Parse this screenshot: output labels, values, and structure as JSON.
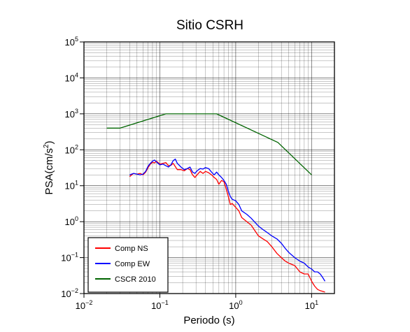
{
  "chart_data": {
    "type": "line",
    "title": "Sitio CSRH",
    "xlabel": "Periodo (s)",
    "ylabel_base": "PSA(cm/s",
    "ylabel_sup": "2",
    "ylabel_end": ")",
    "xscale": "log",
    "yscale": "log",
    "xlim": [
      0.01,
      20
    ],
    "ylim": [
      0.01,
      100000
    ],
    "grid": true,
    "legend_position": "bottom-left",
    "x_ticks": [
      {
        "value": 0.01,
        "base": "10",
        "exp": "−2"
      },
      {
        "value": 0.1,
        "base": "10",
        "exp": "−1"
      },
      {
        "value": 1,
        "base": "10",
        "exp": "0"
      },
      {
        "value": 10,
        "base": "10",
        "exp": "1"
      }
    ],
    "y_ticks": [
      {
        "value": 0.01,
        "base": "10",
        "exp": "−2"
      },
      {
        "value": 0.1,
        "base": "10",
        "exp": "−1"
      },
      {
        "value": 1,
        "base": "10",
        "exp": "0"
      },
      {
        "value": 10,
        "base": "10",
        "exp": "1"
      },
      {
        "value": 100,
        "base": "10",
        "exp": "2"
      },
      {
        "value": 1000,
        "base": "10",
        "exp": "3"
      },
      {
        "value": 10000,
        "base": "10",
        "exp": "4"
      },
      {
        "value": 100000,
        "base": "10",
        "exp": "5"
      }
    ],
    "series": [
      {
        "name": "Comp NS",
        "color": "#ff0000",
        "points": [
          [
            0.04,
            18
          ],
          [
            0.045,
            22
          ],
          [
            0.05,
            21
          ],
          [
            0.055,
            22
          ],
          [
            0.06,
            20
          ],
          [
            0.065,
            24
          ],
          [
            0.07,
            32
          ],
          [
            0.075,
            40
          ],
          [
            0.08,
            45
          ],
          [
            0.085,
            43
          ],
          [
            0.09,
            48
          ],
          [
            0.095,
            44
          ],
          [
            0.1,
            40
          ],
          [
            0.11,
            42
          ],
          [
            0.12,
            44
          ],
          [
            0.13,
            36
          ],
          [
            0.14,
            37
          ],
          [
            0.15,
            42
          ],
          [
            0.16,
            34
          ],
          [
            0.17,
            28
          ],
          [
            0.19,
            28
          ],
          [
            0.21,
            26
          ],
          [
            0.23,
            30
          ],
          [
            0.25,
            28
          ],
          [
            0.27,
            20
          ],
          [
            0.29,
            17
          ],
          [
            0.31,
            20
          ],
          [
            0.34,
            25
          ],
          [
            0.37,
            22
          ],
          [
            0.4,
            25
          ],
          [
            0.44,
            23
          ],
          [
            0.48,
            20
          ],
          [
            0.52,
            17
          ],
          [
            0.56,
            15
          ],
          [
            0.6,
            11
          ],
          [
            0.65,
            14
          ],
          [
            0.7,
            13
          ],
          [
            0.75,
            8
          ],
          [
            0.8,
            5
          ],
          [
            0.85,
            3
          ],
          [
            0.9,
            3.2
          ],
          [
            1.0,
            2.5
          ],
          [
            1.1,
            2
          ],
          [
            1.2,
            1.3
          ],
          [
            1.4,
            1
          ],
          [
            1.6,
            0.8
          ],
          [
            1.8,
            0.55
          ],
          [
            2.0,
            0.4
          ],
          [
            2.3,
            0.33
          ],
          [
            2.6,
            0.28
          ],
          [
            3.0,
            0.2
          ],
          [
            3.5,
            0.13
          ],
          [
            4.0,
            0.1
          ],
          [
            4.5,
            0.08
          ],
          [
            5.0,
            0.07
          ],
          [
            6.0,
            0.06
          ],
          [
            7.0,
            0.04
          ],
          [
            8.0,
            0.035
          ],
          [
            9.0,
            0.035
          ],
          [
            10.0,
            0.022
          ],
          [
            11.0,
            0.016
          ],
          [
            12.0,
            0.013
          ],
          [
            13.0,
            0.012
          ],
          [
            14.0,
            0.0115
          ],
          [
            15.0,
            0.011
          ]
        ]
      },
      {
        "name": "Comp EW",
        "color": "#0000ff",
        "points": [
          [
            0.04,
            20
          ],
          [
            0.045,
            22
          ],
          [
            0.05,
            21
          ],
          [
            0.055,
            20
          ],
          [
            0.06,
            21
          ],
          [
            0.065,
            25
          ],
          [
            0.07,
            35
          ],
          [
            0.075,
            42
          ],
          [
            0.08,
            48
          ],
          [
            0.085,
            52
          ],
          [
            0.09,
            46
          ],
          [
            0.095,
            42
          ],
          [
            0.1,
            38
          ],
          [
            0.11,
            40
          ],
          [
            0.12,
            36
          ],
          [
            0.13,
            33
          ],
          [
            0.14,
            38
          ],
          [
            0.15,
            50
          ],
          [
            0.16,
            55
          ],
          [
            0.17,
            42
          ],
          [
            0.19,
            33
          ],
          [
            0.21,
            28
          ],
          [
            0.23,
            30
          ],
          [
            0.25,
            33
          ],
          [
            0.27,
            24
          ],
          [
            0.29,
            22
          ],
          [
            0.31,
            26
          ],
          [
            0.34,
            30
          ],
          [
            0.37,
            29
          ],
          [
            0.4,
            32
          ],
          [
            0.44,
            30
          ],
          [
            0.48,
            24
          ],
          [
            0.52,
            20
          ],
          [
            0.56,
            24
          ],
          [
            0.6,
            20
          ],
          [
            0.65,
            17
          ],
          [
            0.7,
            14
          ],
          [
            0.75,
            11
          ],
          [
            0.8,
            7
          ],
          [
            0.85,
            5
          ],
          [
            0.9,
            4.2
          ],
          [
            1.0,
            3.8
          ],
          [
            1.1,
            3
          ],
          [
            1.2,
            2
          ],
          [
            1.4,
            1.6
          ],
          [
            1.6,
            1.25
          ],
          [
            1.8,
            0.95
          ],
          [
            2.0,
            0.75
          ],
          [
            2.3,
            0.6
          ],
          [
            2.6,
            0.5
          ],
          [
            3.0,
            0.4
          ],
          [
            3.5,
            0.33
          ],
          [
            4.0,
            0.25
          ],
          [
            4.5,
            0.18
          ],
          [
            5.0,
            0.14
          ],
          [
            6.0,
            0.1
          ],
          [
            7.0,
            0.08
          ],
          [
            8.0,
            0.07
          ],
          [
            9.0,
            0.055
          ],
          [
            10.0,
            0.048
          ],
          [
            11.0,
            0.04
          ],
          [
            12.0,
            0.04
          ],
          [
            13.0,
            0.035
          ],
          [
            14.0,
            0.028
          ],
          [
            15.0,
            0.022
          ]
        ]
      },
      {
        "name": "CSCR 2010",
        "color": "#006400",
        "points": [
          [
            0.02,
            400
          ],
          [
            0.03,
            400
          ],
          [
            0.12,
            1000
          ],
          [
            0.56,
            1000
          ],
          [
            3.6,
            160
          ],
          [
            10.0,
            20
          ]
        ]
      }
    ]
  }
}
